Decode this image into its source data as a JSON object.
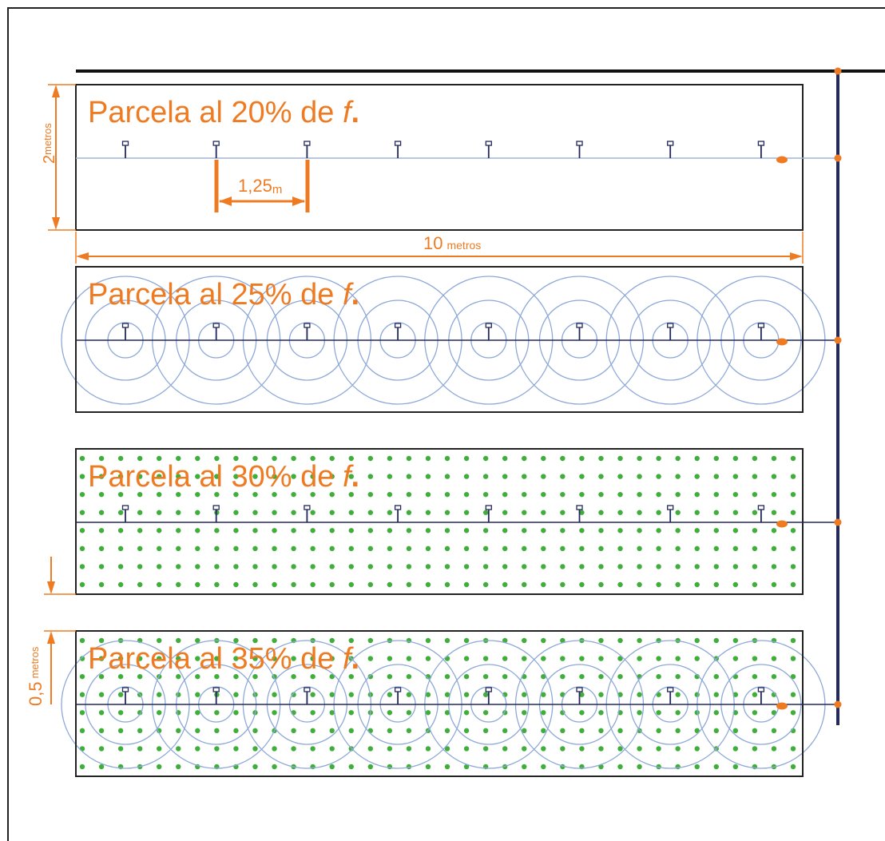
{
  "colors": {
    "orange": "#ee7b22",
    "navy": "#23285f",
    "circle_blue": "#8ea9d8",
    "lateral_light": "#9fb3da",
    "dot_green": "#3fae3a",
    "frame": "#222222",
    "background": "#ffffff"
  },
  "plots": [
    {
      "title_text": "Parcela al 20% de ",
      "f": "f",
      "dot": ".",
      "circles": false,
      "grass": false,
      "light_lateral": true
    },
    {
      "title_text": "Parcela al 25% de ",
      "f": "f",
      "dot": ".",
      "circles": true,
      "grass": false,
      "light_lateral": false
    },
    {
      "title_text": "Parcela al 30% de ",
      "f": "f",
      "dot": ".",
      "circles": false,
      "grass": true,
      "light_lateral": false
    },
    {
      "title_text": "Parcela al 35% de ",
      "f": "f",
      "dot": ".",
      "circles": true,
      "grass": true,
      "light_lateral": false
    }
  ],
  "dimensions": {
    "plot_height": {
      "value": "2",
      "unit": "metros"
    },
    "plot_length": {
      "value": "10",
      "unit": "metros"
    },
    "emitter_spacing": {
      "value": "1,25",
      "unit": "m"
    },
    "plot_gap": {
      "value": "0,5",
      "unit": "metros"
    }
  },
  "layout_model": {
    "emitters_per_plot": 8,
    "circle_rings": 3,
    "grass_rows": 8,
    "grass_cols": 38
  },
  "icons": {
    "emitter": "sprinkler-icon",
    "valve": "valve-icon",
    "tap": "water-tap-icon"
  }
}
